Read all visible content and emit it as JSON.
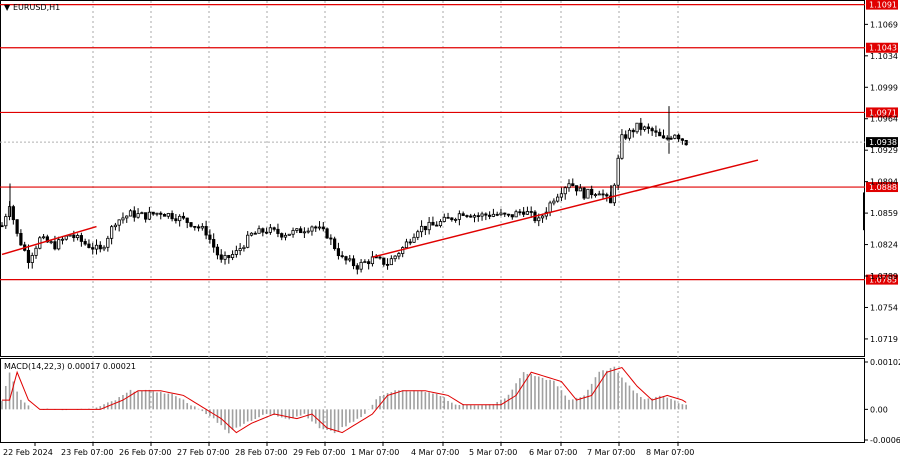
{
  "chart_title": "EURUSD,H1",
  "indicator_label": "MACD(14,22,3) 0.00017 0.00021",
  "current_price": "1.0938",
  "price_axis_labels": [
    "1.1069",
    "1.1034",
    "1.0999",
    "1.0964",
    "1.0929",
    "1.0894",
    "1.0859",
    "1.0824",
    "1.0789",
    "1.0754",
    "1.0719"
  ],
  "macd_axis_labels": [
    "0.00102",
    "0.00",
    "-0.00066"
  ],
  "time_axis_labels": [
    "22 Feb 2024",
    "23 Feb 07:00",
    "26 Feb 07:00",
    "27 Feb 07:00",
    "28 Feb 07:00",
    "29 Feb 07:00",
    "1 Mar 07:00",
    "4 Mar 07:00",
    "5 Mar 07:00",
    "6 Mar 07:00",
    "7 Mar 07:00",
    "8 Mar 07:00"
  ],
  "levels": [
    {
      "label": "1.1091",
      "value": 1.1091
    },
    {
      "label": "1.1043",
      "value": 1.1043
    },
    {
      "label": "1.0971",
      "value": 1.0971
    },
    {
      "label": "1.0888",
      "value": 1.0888
    },
    {
      "label": "1.0785",
      "value": 1.0785
    }
  ],
  "colors": {
    "level": "#e00000",
    "trend": "#e00000",
    "candle": "#000000",
    "macd_hist": "#a0a0a0",
    "macd_signal": "#e00000",
    "grid": "#a8a8a8"
  },
  "chart_data": {
    "type": "candlestick",
    "symbol": "EURUSD",
    "timeframe": "H1",
    "ylim": [
      1.07,
      1.1095
    ],
    "price_path": [
      [
        0,
        1.0845
      ],
      [
        2,
        1.087
      ],
      [
        4,
        1.0835
      ],
      [
        7,
        1.0808
      ],
      [
        10,
        1.083
      ],
      [
        14,
        1.0823
      ],
      [
        18,
        1.0835
      ],
      [
        22,
        1.0825
      ],
      [
        26,
        1.0817
      ],
      [
        30,
        1.085
      ],
      [
        34,
        1.0858
      ],
      [
        38,
        1.0856
      ],
      [
        42,
        1.086
      ],
      [
        46,
        1.0855
      ],
      [
        50,
        1.0848
      ],
      [
        54,
        1.0838
      ],
      [
        58,
        1.0805
      ],
      [
        62,
        1.0815
      ],
      [
        66,
        1.0835
      ],
      [
        70,
        1.084
      ],
      [
        74,
        1.0836
      ],
      [
        78,
        1.0838
      ],
      [
        82,
        1.0845
      ],
      [
        86,
        1.0835
      ],
      [
        90,
        1.0808
      ],
      [
        94,
        1.08
      ],
      [
        98,
        1.0808
      ],
      [
        102,
        1.0803
      ],
      [
        106,
        1.082
      ],
      [
        110,
        1.0842
      ],
      [
        114,
        1.0845
      ],
      [
        118,
        1.0852
      ],
      [
        122,
        1.086
      ],
      [
        126,
        1.0856
      ],
      [
        130,
        1.0858
      ],
      [
        134,
        1.0855
      ],
      [
        138,
        1.0862
      ],
      [
        142,
        1.085
      ],
      [
        146,
        1.0876
      ],
      [
        150,
        1.0894
      ],
      [
        154,
        1.088
      ],
      [
        158,
        1.0884
      ],
      [
        161,
        1.0869
      ],
      [
        164,
        1.0942
      ],
      [
        168,
        1.0955
      ],
      [
        172,
        1.095
      ],
      [
        175,
        1.094
      ],
      [
        178,
        1.0948
      ],
      [
        181,
        1.0938
      ]
    ],
    "macd_path": [
      [
        0,
        0.0002
      ],
      [
        2,
        0.0008
      ],
      [
        5,
        0.0002
      ],
      [
        8,
        0.0
      ],
      [
        12,
        0.0
      ],
      [
        18,
        0.0
      ],
      [
        24,
        0.0
      ],
      [
        30,
        0.0002
      ],
      [
        34,
        0.0004
      ],
      [
        40,
        0.0004
      ],
      [
        46,
        0.0003
      ],
      [
        52,
        0.0
      ],
      [
        56,
        -0.0002
      ],
      [
        60,
        -0.0005
      ],
      [
        64,
        -0.0003
      ],
      [
        70,
        -0.0001
      ],
      [
        76,
        -0.0002
      ],
      [
        80,
        -0.0001
      ],
      [
        84,
        -0.0004
      ],
      [
        88,
        -0.0005
      ],
      [
        92,
        -0.0003
      ],
      [
        96,
        -0.0001
      ],
      [
        100,
        0.0003
      ],
      [
        104,
        0.0004
      ],
      [
        110,
        0.0004
      ],
      [
        116,
        0.0003
      ],
      [
        120,
        0.0001
      ],
      [
        126,
        0.0001
      ],
      [
        130,
        0.0001
      ],
      [
        134,
        0.0003
      ],
      [
        138,
        0.0008
      ],
      [
        142,
        0.0007
      ],
      [
        146,
        0.0006
      ],
      [
        150,
        0.0002
      ],
      [
        154,
        0.0003
      ],
      [
        158,
        0.0008
      ],
      [
        162,
        0.0009
      ],
      [
        166,
        0.0005
      ],
      [
        170,
        0.0002
      ],
      [
        174,
        0.0003
      ],
      [
        178,
        0.0002
      ],
      [
        180,
        0.0001
      ]
    ],
    "trendlines": [
      {
        "x0": 0,
        "y0": 1.0813,
        "x1": 25,
        "y1": 1.0844
      },
      {
        "x0": 98,
        "y0": 1.081,
        "x1": 200,
        "y1": 1.0918
      }
    ],
    "macd_ylim": [
      -0.00066,
      0.00102
    ]
  }
}
